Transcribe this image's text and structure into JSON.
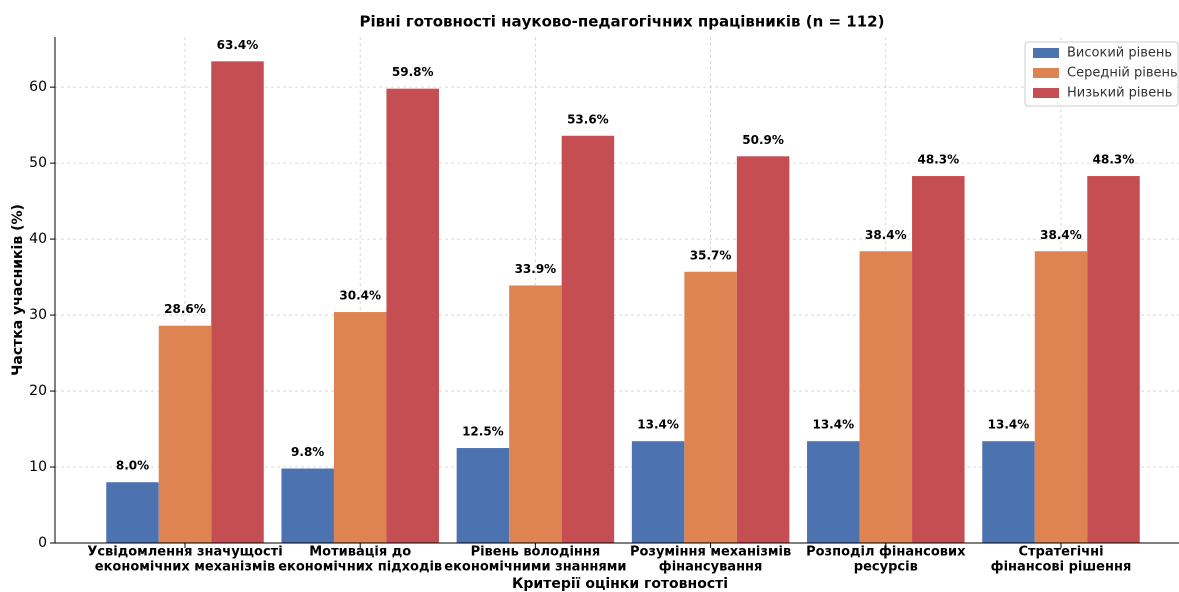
{
  "chart_data": {
    "type": "bar",
    "title": "Рівні готовності науково-педагогічних працівників (n = 112)",
    "xlabel": "Критерії оцінки готовності",
    "ylabel": "Частка учасників (%)",
    "categories": [
      [
        "Усвідомлення значущості",
        "економічних механізмів"
      ],
      [
        "Мотивація до",
        "економічних підходів"
      ],
      [
        "Рівень володіння",
        "економічними знаннями"
      ],
      [
        "Розуміння механізмів",
        "фінансування"
      ],
      [
        "Розподіл фінансових",
        "ресурсів"
      ],
      [
        "Стратегічні",
        "фінансові рішення"
      ]
    ],
    "series": [
      {
        "name": "Високий рівень",
        "color": "#4c72b0",
        "values": [
          8.0,
          9.8,
          12.5,
          13.4,
          13.4,
          13.4
        ],
        "value_labels": [
          "8.0%",
          "9.8%",
          "12.5%",
          "13.4%",
          "13.4%",
          "13.4%"
        ]
      },
      {
        "name": "Середній рівень",
        "color": "#dd8452",
        "values": [
          28.6,
          30.4,
          33.9,
          35.7,
          38.4,
          38.4
        ],
        "value_labels": [
          "28.6%",
          "30.4%",
          "33.9%",
          "35.7%",
          "38.4%",
          "38.4%"
        ]
      },
      {
        "name": "Низький рівень",
        "color": "#c44e52",
        "values": [
          63.4,
          59.8,
          53.6,
          50.9,
          48.3,
          48.3
        ],
        "value_labels": [
          "63.4%",
          "59.8%",
          "53.6%",
          "50.9%",
          "48.3%",
          "48.3%"
        ]
      }
    ],
    "ylim": [
      0,
      66.6
    ],
    "yticks": [
      0,
      10,
      20,
      30,
      40,
      50,
      60
    ],
    "grid": true,
    "legend": "upper right"
  }
}
